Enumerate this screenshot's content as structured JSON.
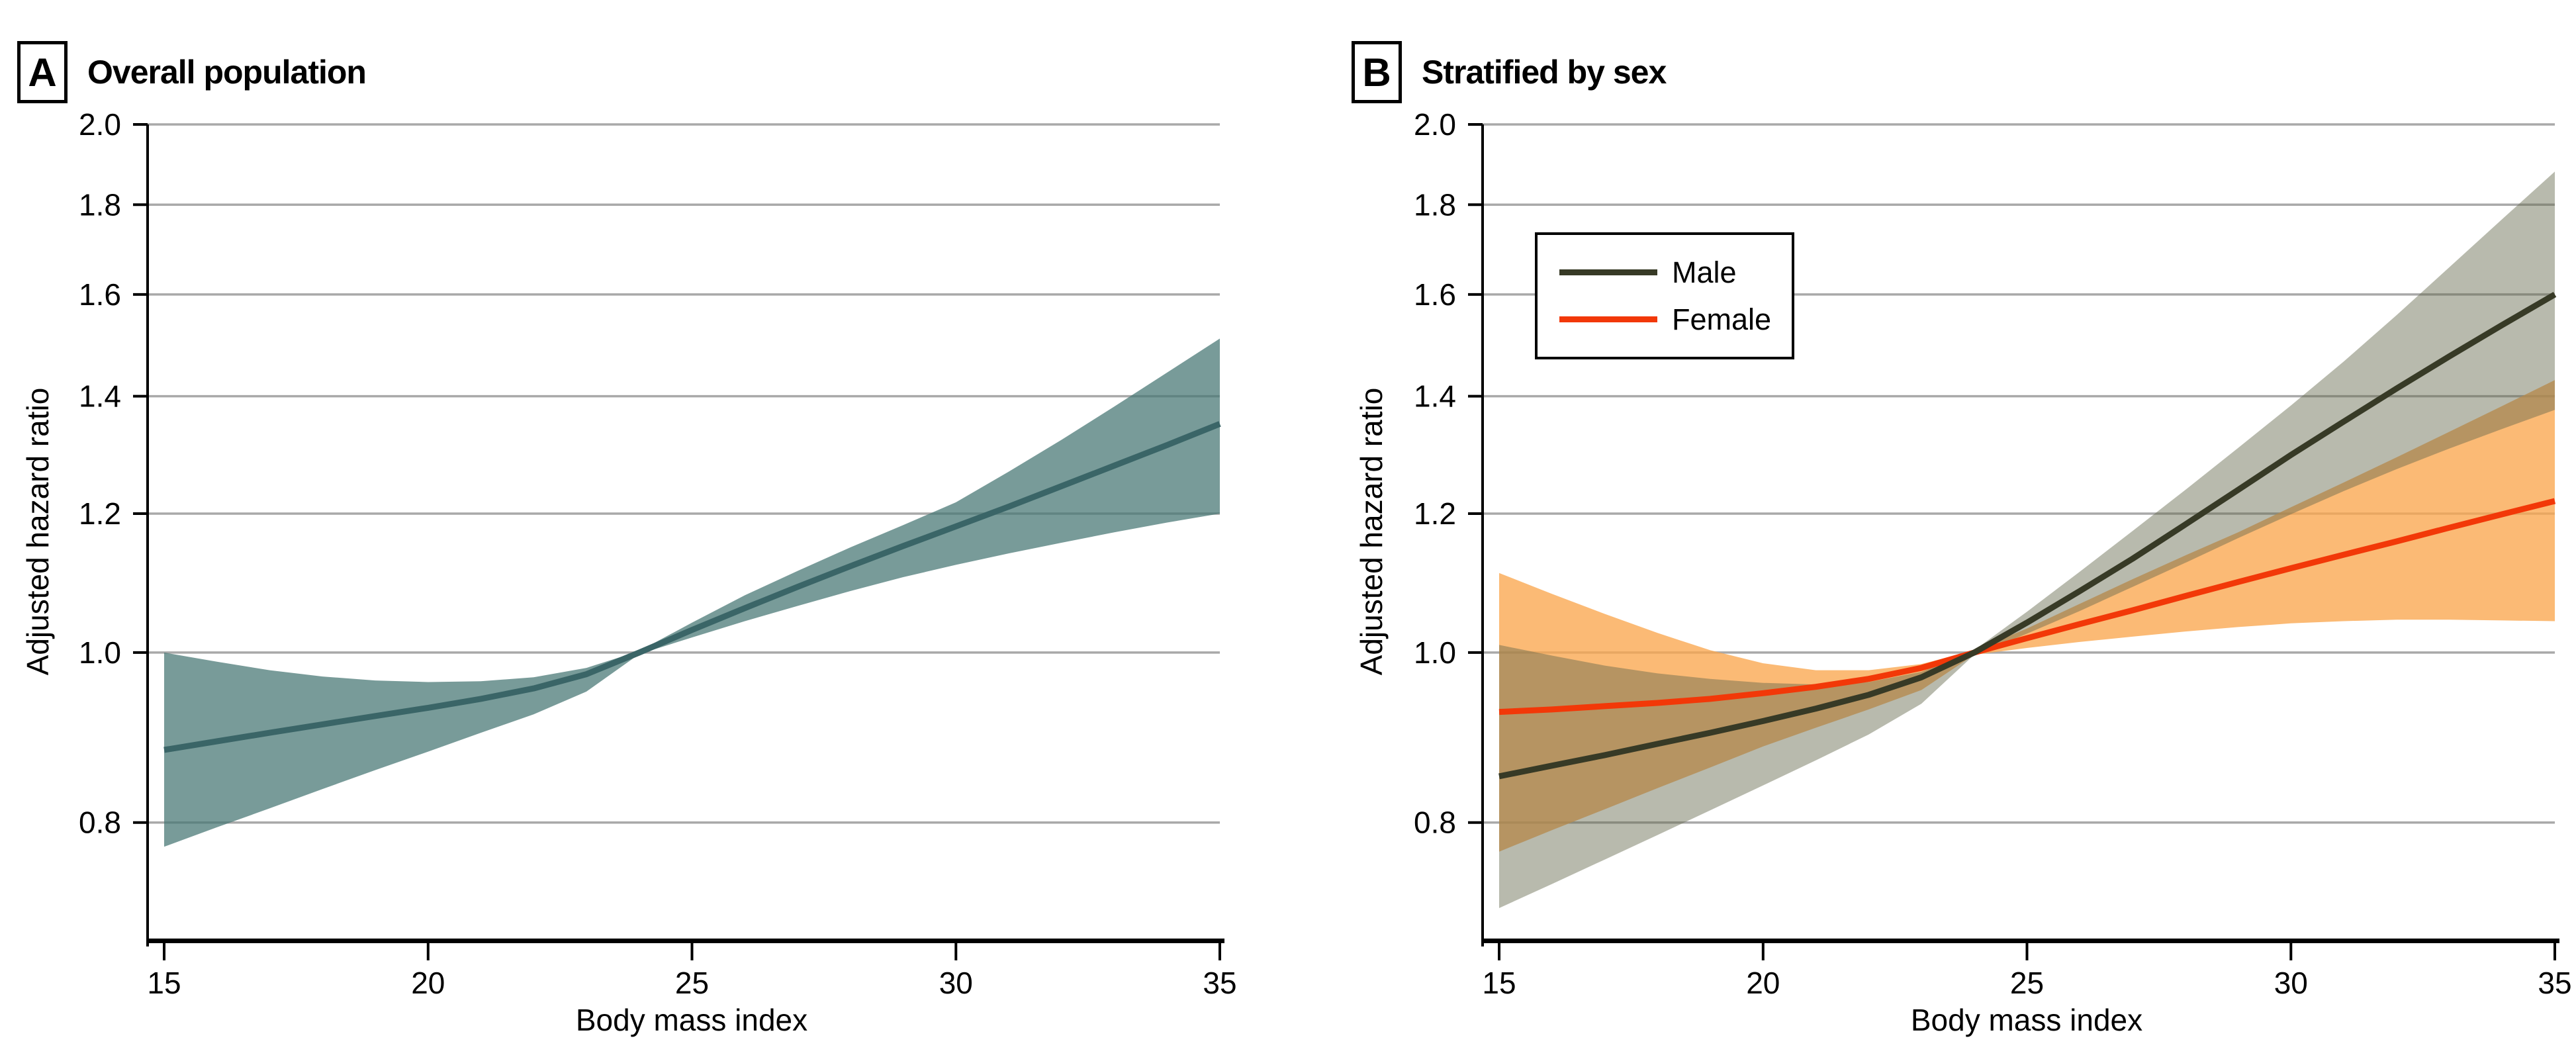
{
  "figure": {
    "background": "#ffffff",
    "panels": [
      {
        "tag": "A",
        "title": "Overall population",
        "xlabel": "Body mass index",
        "ylabel": "Adjusted hazard ratio"
      },
      {
        "tag": "B",
        "title": "Stratified by sex",
        "xlabel": "Body mass index",
        "ylabel": "Adjusted hazard ratio"
      }
    ]
  },
  "chart_data": [
    {
      "type": "line",
      "panel": "A",
      "title": "Overall population",
      "xlabel": "Body mass index",
      "ylabel": "Adjusted hazard ratio",
      "x_scale": "linear",
      "y_scale": "log",
      "xlim": [
        15,
        35
      ],
      "ylim": [
        0.687,
        2.0
      ],
      "x_ticks": [
        15,
        20,
        25,
        30,
        35
      ],
      "x_tick_labels": [
        "15",
        "20",
        "25",
        "30",
        "35"
      ],
      "y_ticks": [
        2.0,
        1.8,
        1.6,
        1.4,
        1.2,
        1.0,
        0.8
      ],
      "y_tick_labels": [
        "2.0",
        "1.8",
        "1.6",
        "1.4",
        "1.2",
        "1.0",
        "0.8"
      ],
      "grid": "horizontal",
      "grid_color": "#A9A9A9",
      "reference_hr": 1.0,
      "x": [
        15,
        16,
        17,
        18,
        19,
        20,
        21,
        22,
        23,
        24,
        25,
        26,
        27,
        28,
        29,
        30,
        31,
        32,
        33,
        34,
        35
      ],
      "series": [
        {
          "name": "Overall",
          "line_color": "#3A6567",
          "band_color": "rgba(70,118,115,0.73)",
          "values": [
            0.88,
            0.89,
            0.9,
            0.91,
            0.92,
            0.93,
            0.941,
            0.954,
            0.972,
            1.0,
            1.03,
            1.06,
            1.09,
            1.12,
            1.15,
            1.18,
            1.211,
            1.244,
            1.278,
            1.313,
            1.35
          ],
          "ci_low": [
            0.775,
            0.795,
            0.815,
            0.836,
            0.857,
            0.878,
            0.9,
            0.922,
            0.95,
            0.998,
            1.02,
            1.042,
            1.063,
            1.084,
            1.104,
            1.122,
            1.139,
            1.155,
            1.171,
            1.186,
            1.2
          ],
          "ci_high": [
            1.0,
            0.988,
            0.977,
            0.969,
            0.964,
            0.962,
            0.963,
            0.968,
            0.98,
            1.002,
            1.04,
            1.078,
            1.113,
            1.148,
            1.182,
            1.218,
            1.268,
            1.322,
            1.381,
            1.444,
            1.51
          ]
        }
      ]
    },
    {
      "type": "line",
      "panel": "B",
      "title": "Stratified by sex",
      "xlabel": "Body mass index",
      "ylabel": "Adjusted hazard ratio",
      "x_scale": "linear",
      "y_scale": "log",
      "xlim": [
        15,
        35
      ],
      "ylim": [
        0.687,
        2.0
      ],
      "x_ticks": [
        15,
        20,
        25,
        30,
        35
      ],
      "x_tick_labels": [
        "15",
        "20",
        "25",
        "30",
        "35"
      ],
      "y_ticks": [
        2.0,
        1.8,
        1.6,
        1.4,
        1.2,
        1.0,
        0.8
      ],
      "y_tick_labels": [
        "2.0",
        "1.8",
        "1.6",
        "1.4",
        "1.2",
        "1.0",
        "0.8"
      ],
      "grid": "horizontal",
      "grid_color": "#A9A9A9",
      "reference_hr": 1.0,
      "legend_position": "upper-left",
      "x": [
        15,
        16,
        17,
        18,
        19,
        20,
        21,
        22,
        23,
        24,
        25,
        26,
        27,
        28,
        29,
        30,
        31,
        32,
        33,
        34,
        35
      ],
      "series": [
        {
          "name": "Male",
          "line_color": "#373A26",
          "band_color": "rgba(100,104,76,0.46)",
          "values": [
            0.85,
            0.862,
            0.874,
            0.887,
            0.9,
            0.914,
            0.929,
            0.946,
            0.968,
            1.0,
            1.04,
            1.084,
            1.131,
            1.183,
            1.238,
            1.296,
            1.354,
            1.414,
            1.475,
            1.537,
            1.6
          ],
          "ci_low": [
            0.715,
            0.738,
            0.762,
            0.787,
            0.813,
            0.84,
            0.868,
            0.898,
            0.935,
            0.997,
            1.025,
            1.056,
            1.09,
            1.125,
            1.162,
            1.199,
            1.236,
            1.272,
            1.307,
            1.341,
            1.375
          ],
          "ci_high": [
            1.01,
            0.996,
            0.983,
            0.973,
            0.966,
            0.961,
            0.959,
            0.962,
            0.975,
            1.003,
            1.055,
            1.112,
            1.173,
            1.238,
            1.308,
            1.383,
            1.465,
            1.557,
            1.658,
            1.766,
            1.88
          ]
        },
        {
          "name": "Female",
          "line_color": "#F23808",
          "band_color": "rgba(250,166,78,0.78)",
          "values": [
            0.925,
            0.928,
            0.932,
            0.936,
            0.941,
            0.948,
            0.956,
            0.966,
            0.98,
            1.0,
            1.019,
            1.038,
            1.057,
            1.077,
            1.097,
            1.117,
            1.137,
            1.157,
            1.178,
            1.199,
            1.22
          ],
          "ci_low": [
            0.77,
            0.792,
            0.814,
            0.837,
            0.86,
            0.884,
            0.906,
            0.928,
            0.952,
            0.997,
            1.006,
            1.014,
            1.021,
            1.028,
            1.034,
            1.039,
            1.042,
            1.044,
            1.044,
            1.043,
            1.042
          ],
          "ci_high": [
            1.11,
            1.08,
            1.052,
            1.026,
            1.003,
            0.986,
            0.977,
            0.977,
            0.985,
            1.003,
            1.032,
            1.066,
            1.101,
            1.136,
            1.171,
            1.21,
            1.25,
            1.292,
            1.336,
            1.382,
            1.43
          ]
        }
      ]
    }
  ]
}
